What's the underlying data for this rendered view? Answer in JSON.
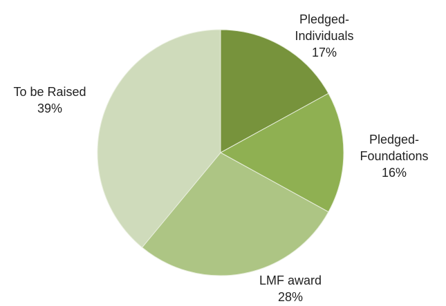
{
  "chart_data": {
    "type": "pie",
    "categories": [
      "Pledged-Individuals",
      "Pledged-Foundations",
      "LMF award",
      "To be Raised"
    ],
    "values": [
      17,
      16,
      28,
      39
    ],
    "value_labels": [
      "17%",
      "16%",
      "28%",
      "39%"
    ],
    "colors": [
      "#77933c",
      "#8fb052",
      "#adc584",
      "#cfdbbb"
    ]
  }
}
